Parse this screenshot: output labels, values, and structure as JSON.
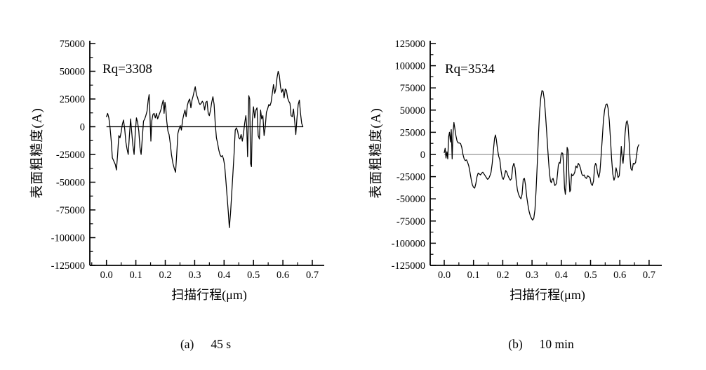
{
  "figure": {
    "background": "#ffffff",
    "axis_color": "#000000",
    "trace_color": "#000000"
  },
  "chart_data": [
    {
      "type": "line",
      "id": "a",
      "caption_label": "(a)",
      "caption_text": "45 s",
      "annotation": "Rq=3308",
      "xlabel": "扫描行程(μm)",
      "ylabel": "表面粗糙度(A)",
      "xlim": [
        0,
        0.7
      ],
      "ylim": [
        -125000,
        75000
      ],
      "xticks": [
        "0.0",
        "0.1",
        "0.2",
        "0.3",
        "0.4",
        "0.5",
        "0.6",
        "0.7"
      ],
      "yticks": [
        75000,
        50000,
        25000,
        0,
        -25000,
        -50000,
        -75000,
        -100000,
        -125000
      ],
      "ytick_major_step": 25000,
      "ytick_minor_step": 12500,
      "grid": false,
      "legend": "none",
      "zero_line": true,
      "zero_line_color": "#000000",
      "zero_line_end": 0.668,
      "series": [
        {
          "name": "surface roughness profile 45 s",
          "x": [
            0,
            0.004,
            0.008,
            0.012,
            0.016,
            0.02,
            0.025,
            0.03,
            0.034,
            0.038,
            0.042,
            0.046,
            0.05,
            0.054,
            0.058,
            0.062,
            0.066,
            0.07,
            0.074,
            0.078,
            0.082,
            0.086,
            0.09,
            0.094,
            0.098,
            0.102,
            0.106,
            0.11,
            0.114,
            0.118,
            0.122,
            0.126,
            0.13,
            0.134,
            0.138,
            0.142,
            0.145,
            0.148,
            0.151,
            0.154,
            0.158,
            0.162,
            0.166,
            0.17,
            0.174,
            0.178,
            0.182,
            0.186,
            0.19,
            0.193,
            0.196,
            0.199,
            0.202,
            0.205,
            0.209,
            0.213,
            0.217,
            0.221,
            0.226,
            0.231,
            0.235,
            0.239,
            0.243,
            0.247,
            0.251,
            0.255,
            0.259,
            0.263,
            0.267,
            0.271,
            0.275,
            0.279,
            0.283,
            0.287,
            0.291,
            0.295,
            0.299,
            0.302,
            0.306,
            0.31,
            0.314,
            0.318,
            0.322,
            0.326,
            0.33,
            0.334,
            0.338,
            0.342,
            0.346,
            0.35,
            0.354,
            0.358,
            0.362,
            0.366,
            0.37,
            0.374,
            0.378,
            0.382,
            0.386,
            0.39,
            0.394,
            0.398,
            0.402,
            0.406,
            0.41,
            0.414,
            0.418,
            0.422,
            0.426,
            0.43,
            0.434,
            0.438,
            0.442,
            0.446,
            0.45,
            0.454,
            0.458,
            0.462,
            0.466,
            0.47,
            0.474,
            0.477,
            0.48,
            0.484,
            0.487,
            0.49,
            0.493,
            0.496,
            0.5,
            0.504,
            0.508,
            0.512,
            0.516,
            0.52,
            0.524,
            0.528,
            0.532,
            0.536,
            0.54,
            0.544,
            0.548,
            0.552,
            0.556,
            0.56,
            0.564,
            0.568,
            0.572,
            0.576,
            0.58,
            0.584,
            0.588,
            0.592,
            0.596,
            0.6,
            0.604,
            0.608,
            0.612,
            0.616,
            0.62,
            0.624,
            0.628,
            0.632,
            0.636,
            0.64,
            0.644,
            0.648,
            0.652,
            0.656,
            0.66,
            0.664,
            0.668
          ],
          "y": [
            9000,
            12000,
            8000,
            0,
            -12000,
            -28000,
            -31000,
            -34000,
            -39000,
            -25000,
            -8000,
            -10000,
            -5000,
            2000,
            6000,
            -2000,
            -14000,
            -20000,
            -25000,
            -8000,
            7000,
            -5000,
            -17000,
            -25000,
            -5000,
            8000,
            4000,
            -4000,
            -19000,
            -25000,
            -10000,
            5000,
            7000,
            10000,
            14000,
            24000,
            29000,
            10000,
            -13000,
            5000,
            11000,
            12000,
            8000,
            12000,
            7000,
            10000,
            13000,
            16000,
            21000,
            24000,
            12000,
            22000,
            16000,
            5000,
            -4000,
            -7000,
            -15000,
            -25000,
            -33000,
            -38000,
            -41000,
            -25000,
            -6000,
            -2000,
            1000,
            -3000,
            6000,
            11000,
            15000,
            9000,
            19000,
            23000,
            25000,
            17000,
            24000,
            28000,
            33000,
            36000,
            29000,
            26000,
            22000,
            20000,
            21000,
            23000,
            21000,
            15000,
            22000,
            23000,
            12000,
            10000,
            15000,
            22000,
            27000,
            20000,
            3000,
            -10000,
            -15000,
            -21000,
            -25000,
            -27000,
            -26000,
            -29000,
            -35000,
            -48000,
            -62000,
            -76000,
            -91000,
            -78000,
            -60000,
            -42000,
            -25000,
            -3000,
            -1000,
            -4000,
            -10000,
            -11000,
            -7000,
            -13000,
            -6000,
            3000,
            10000,
            0,
            -27000,
            28000,
            25000,
            -33000,
            -36000,
            5000,
            18000,
            8000,
            15000,
            17000,
            -8000,
            -11000,
            15000,
            7000,
            10000,
            -8000,
            0,
            13000,
            16000,
            20000,
            19000,
            22000,
            30000,
            38000,
            30000,
            34000,
            44000,
            50000,
            46000,
            36000,
            31000,
            34000,
            26000,
            34000,
            33000,
            26000,
            23000,
            21000,
            10000,
            9000,
            16000,
            5000,
            -7000,
            8000,
            20000,
            24000,
            12000,
            3000,
            0
          ]
        }
      ]
    },
    {
      "type": "line",
      "id": "b",
      "caption_label": "(b)",
      "caption_text": "10 min",
      "annotation": "Rq=3534",
      "xlabel": "扫描行程(μm)",
      "ylabel": "表面粗糙度(A)",
      "xlim": [
        0,
        0.7
      ],
      "ylim": [
        -125000,
        125000
      ],
      "xticks": [
        "0.0",
        "0.1",
        "0.2",
        "0.3",
        "0.4",
        "0.5",
        "0.6",
        "0.7"
      ],
      "yticks": [
        125000,
        100000,
        75000,
        50000,
        25000,
        0,
        -25000,
        -50000,
        -75000,
        -100000,
        -125000
      ],
      "ytick_major_step": 25000,
      "ytick_minor_step": 12500,
      "grid": false,
      "legend": "none",
      "zero_line": true,
      "zero_line_color": "#7a7a7a",
      "zero_line_end": 0.665,
      "series": [
        {
          "name": "surface roughness profile 10 min",
          "x": [
            0,
            0.003,
            0.006,
            0.009,
            0.012,
            0.015,
            0.018,
            0.021,
            0.024,
            0.027,
            0.03,
            0.033,
            0.036,
            0.04,
            0.044,
            0.048,
            0.052,
            0.056,
            0.06,
            0.064,
            0.068,
            0.072,
            0.076,
            0.08,
            0.084,
            0.088,
            0.092,
            0.096,
            0.1,
            0.104,
            0.108,
            0.112,
            0.116,
            0.12,
            0.124,
            0.128,
            0.132,
            0.136,
            0.14,
            0.144,
            0.148,
            0.152,
            0.156,
            0.16,
            0.164,
            0.168,
            0.172,
            0.175,
            0.178,
            0.182,
            0.186,
            0.19,
            0.194,
            0.198,
            0.202,
            0.206,
            0.21,
            0.214,
            0.218,
            0.222,
            0.226,
            0.23,
            0.234,
            0.238,
            0.242,
            0.246,
            0.25,
            0.254,
            0.258,
            0.262,
            0.266,
            0.27,
            0.274,
            0.278,
            0.282,
            0.286,
            0.29,
            0.294,
            0.298,
            0.302,
            0.306,
            0.31,
            0.314,
            0.318,
            0.322,
            0.326,
            0.33,
            0.334,
            0.338,
            0.342,
            0.346,
            0.35,
            0.354,
            0.357,
            0.36,
            0.363,
            0.366,
            0.369,
            0.372,
            0.375,
            0.378,
            0.381,
            0.384,
            0.387,
            0.39,
            0.393,
            0.396,
            0.399,
            0.402,
            0.405,
            0.408,
            0.411,
            0.414,
            0.417,
            0.42,
            0.423,
            0.426,
            0.429,
            0.432,
            0.435,
            0.438,
            0.442,
            0.446,
            0.45,
            0.454,
            0.458,
            0.462,
            0.466,
            0.47,
            0.474,
            0.478,
            0.482,
            0.486,
            0.49,
            0.494,
            0.498,
            0.502,
            0.506,
            0.51,
            0.514,
            0.517,
            0.52,
            0.524,
            0.528,
            0.532,
            0.536,
            0.54,
            0.544,
            0.548,
            0.552,
            0.556,
            0.56,
            0.564,
            0.568,
            0.572,
            0.576,
            0.58,
            0.584,
            0.587,
            0.59,
            0.594,
            0.598,
            0.602,
            0.605,
            0.608,
            0.611,
            0.614,
            0.618,
            0.622,
            0.625,
            0.628,
            0.632,
            0.635,
            0.638,
            0.642,
            0.646,
            0.65,
            0.654,
            0.657,
            0.661,
            0.665
          ],
          "y": [
            2000,
            7000,
            -4000,
            3000,
            -5000,
            20000,
            25000,
            14000,
            28000,
            -5000,
            24000,
            36000,
            30000,
            21000,
            15000,
            13000,
            13000,
            12000,
            8000,
            0,
            -5000,
            -7000,
            -6000,
            -9000,
            -13000,
            -20000,
            -28000,
            -34000,
            -37000,
            -38000,
            -33000,
            -25000,
            -21000,
            -22000,
            -23000,
            -21000,
            -20000,
            -22000,
            -24000,
            -26000,
            -28000,
            -27000,
            -24000,
            -20000,
            -10000,
            5000,
            18000,
            22000,
            17000,
            6000,
            -2000,
            -6000,
            -18000,
            -26000,
            -28000,
            -24000,
            -18000,
            -20000,
            -24000,
            -27000,
            -29000,
            -27000,
            -14000,
            -10000,
            -15000,
            -30000,
            -40000,
            -45000,
            -48000,
            -50000,
            -45000,
            -28000,
            -27000,
            -35000,
            -48000,
            -57000,
            -64000,
            -69000,
            -72000,
            -74000,
            -72000,
            -62000,
            -40000,
            -10000,
            22000,
            48000,
            64000,
            72000,
            71000,
            62000,
            45000,
            25000,
            5000,
            -10000,
            -22000,
            -30000,
            -32000,
            -28000,
            -27000,
            -31000,
            -35000,
            -34000,
            -32000,
            -22000,
            -12000,
            -9000,
            -10000,
            -1000,
            2000,
            1000,
            -12000,
            -38000,
            -45000,
            -30000,
            8000,
            5000,
            -22000,
            -42000,
            -40000,
            -22000,
            -24000,
            -23000,
            -20000,
            -13000,
            -15000,
            -10000,
            -12000,
            -16000,
            -22000,
            -24000,
            -23000,
            -26000,
            -27000,
            -24000,
            -25000,
            -26000,
            -33000,
            -35000,
            -30000,
            -14000,
            -10000,
            -12000,
            -21000,
            -26000,
            -20000,
            -2000,
            18000,
            38000,
            50000,
            56000,
            57000,
            52000,
            38000,
            17000,
            -5000,
            -22000,
            -29000,
            -25000,
            -15000,
            -19000,
            -26000,
            -24000,
            -8000,
            9000,
            -3000,
            -10000,
            1000,
            24000,
            36000,
            38000,
            33000,
            14000,
            -5000,
            -16000,
            -18000,
            -10000,
            -11000,
            -9000,
            -1000,
            8000,
            11000
          ]
        }
      ]
    }
  ]
}
